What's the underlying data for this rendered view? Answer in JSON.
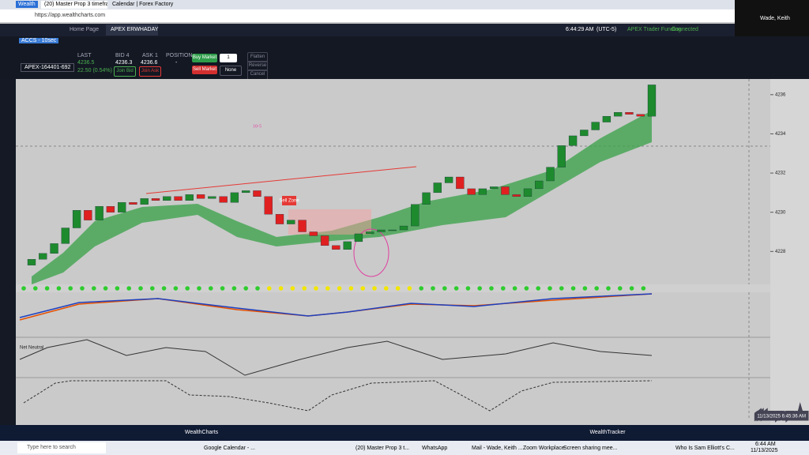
{
  "browser": {
    "brand": "Wealth",
    "tabs": [
      "(20) Master Prop 3 timeframes - ...",
      "Calendar | Forex Factory"
    ],
    "url": "https://app.wealthcharts.com"
  },
  "zoom": {
    "user": "Wade, Keith"
  },
  "app": {
    "tabs": [
      "Home Page",
      "APEX ERWHADAY"
    ],
    "time": "6:44:29 AM",
    "timezone": "(UTC-5)",
    "broker": "APEX Trader Funding",
    "status": "Connected"
  },
  "panel": {
    "symbol": "ACCS - 10sec",
    "account": "APEX-164401-692",
    "last_label": "LAST",
    "last": "4236.5",
    "change": "22.50 (0.54%)",
    "bid_label": "BID 4",
    "bid": "4236.3",
    "ask_label": "ASK 1",
    "ask": "4236.6",
    "position_label": "POSITION",
    "position": "-",
    "join_bid": "Join Bid",
    "join_ask": "Join Ask",
    "buy": "Buy Market",
    "sell": "Sell Market",
    "qty": "1",
    "order_type": "None",
    "flatten": "Flatten",
    "reverse": "Reverse",
    "cancel": "Cancel All"
  },
  "chart": {
    "annotation": "10-5",
    "zone_label": "Sell Zone",
    "indicator": "Net Neutral",
    "ylim": [
      4226.4,
      4236.8
    ],
    "yticks": [
      4228,
      4230,
      4232,
      4234,
      4236
    ],
    "open": 4227.3,
    "closes": [
      4227.6,
      4227.9,
      4228.4,
      4229.2,
      4230.1,
      4229.6,
      4230.3,
      4230.0,
      4230.5,
      4230.4,
      4230.7,
      4230.6,
      4230.8,
      4230.6,
      4230.9,
      4230.7,
      4230.8,
      4230.5,
      4231.0,
      4231.1,
      4230.8,
      4229.9,
      4229.4,
      4229.6,
      4229.0,
      4228.8,
      4228.3,
      4228.1,
      4228.5,
      4228.9,
      4229.0,
      4229.1,
      4229.1,
      4229.3,
      4230.4,
      4231.0,
      4231.5,
      4231.8,
      4231.2,
      4230.9,
      4231.2,
      4231.3,
      4230.9,
      4230.8,
      4231.2,
      4231.6,
      4232.3,
      4233.4,
      4233.9,
      4234.2,
      4234.6,
      4234.9,
      4235.1,
      4235.0,
      4234.9,
      4236.5
    ],
    "timestamp": "11/13/2025 6:45:36 AM"
  },
  "bottom_tabs": [
    "WealthCharts",
    "WealthTracker"
  ],
  "taskbar": {
    "search": "Type here to search",
    "items": [
      "Google Calendar - ...",
      "(20) Master Prop 3 t...",
      "WhatsApp",
      "Mail - Wade, Keith ...",
      "Zoom Workplace",
      "Screen sharing mee...",
      "Who Is Sam Elliott's C..."
    ],
    "time": "6:44 AM",
    "date": "11/13/2025"
  }
}
